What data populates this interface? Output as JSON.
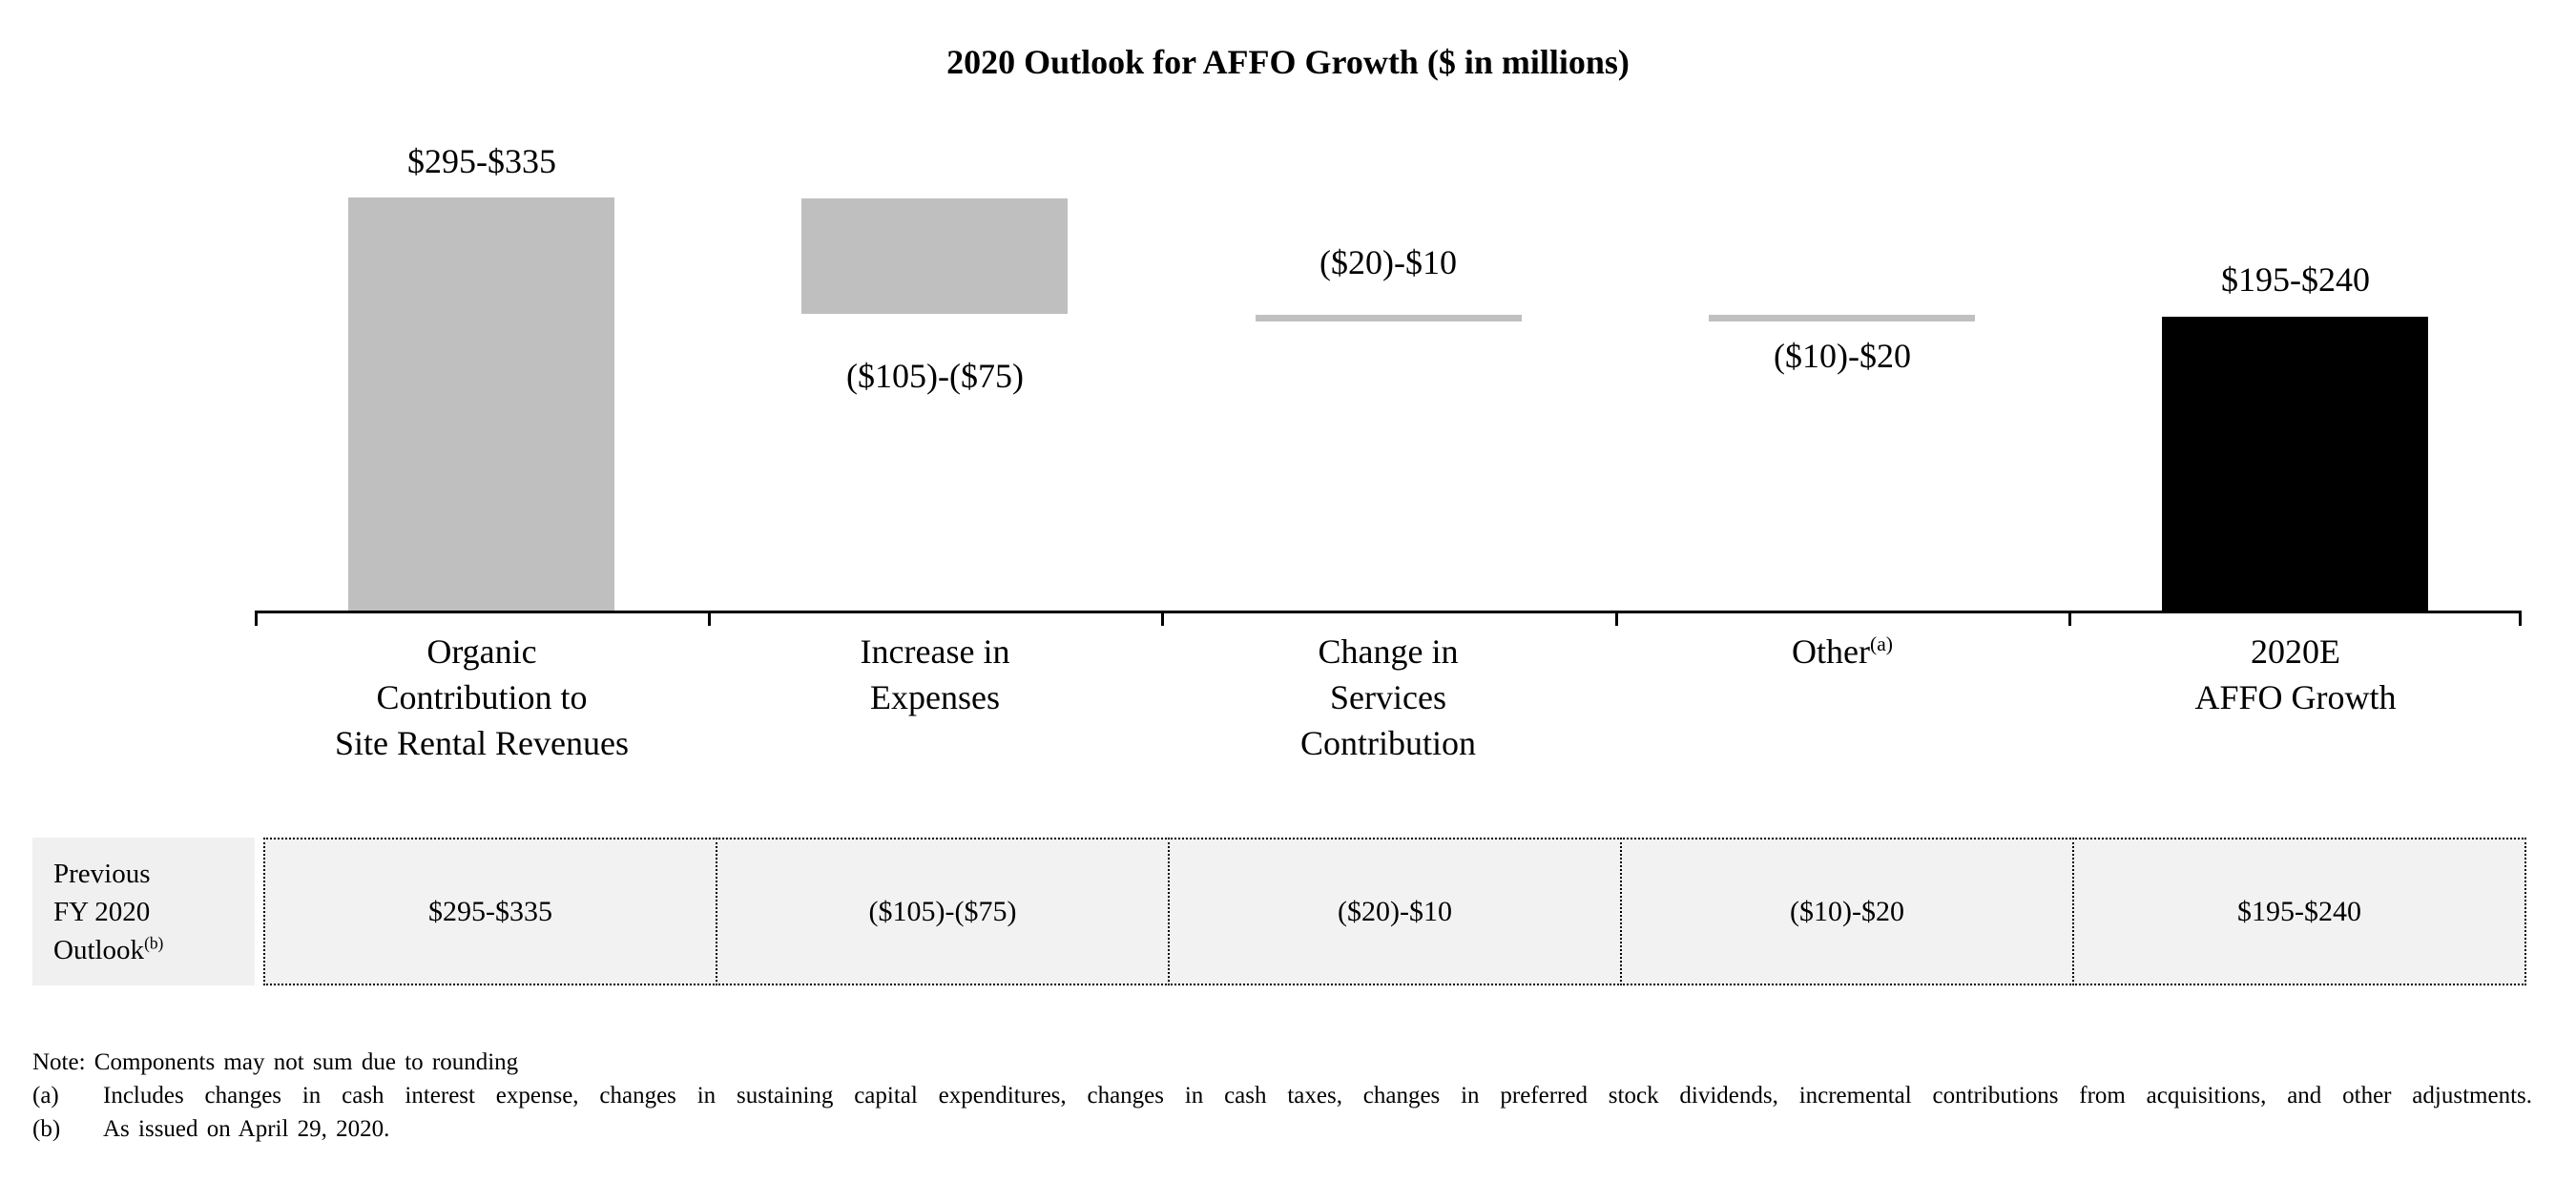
{
  "title": "2020 Outlook for AFFO Growth ($ in millions)",
  "chart_data": {
    "type": "waterfall",
    "title": "2020 Outlook for AFFO Growth ($ in millions)",
    "units": "$ in millions",
    "axis_range": [
      0,
      350
    ],
    "grid": false,
    "legend": false,
    "bars": [
      {
        "category": "Organic\nContribution to\nSite Rental Revenues",
        "value_label": "$295-$335",
        "low": 295,
        "high": 335,
        "bar_color": "#bfbfbf",
        "value_label_position": "above"
      },
      {
        "category": "Increase in\nExpenses",
        "value_label": "($105)-($75)",
        "low": -105,
        "high": -75,
        "bar_color": "#bfbfbf",
        "value_label_position": "below"
      },
      {
        "category": "Change in\nServices\nContribution",
        "value_label": "($20)-$10",
        "low": -20,
        "high": 10,
        "bar_color": "#c0c0c0",
        "value_label_position": "above"
      },
      {
        "category": "Other",
        "category_sup": "(a)",
        "value_label": "($10)-$20",
        "low": -10,
        "high": 20,
        "bar_color": "#c0c0c0",
        "value_label_position": "below"
      },
      {
        "category": "2020E\nAFFO Growth",
        "value_label": "$195-$240",
        "low": 195,
        "high": 240,
        "bar_color": "#000000",
        "value_label_position": "above"
      }
    ]
  },
  "table": {
    "row_header": {
      "lines": "Previous\nFY 2020\nOutlook",
      "sup": "(b)"
    },
    "values": [
      "$295-$335",
      "($105)-($75)",
      "($20)-$10",
      "($10)-$20",
      "$195-$240"
    ]
  },
  "notes": {
    "rounding": "Note: Components may not sum due to rounding",
    "a_label": "(a)",
    "a_text": "Includes changes in cash interest expense, changes in sustaining capital expenditures, changes in cash taxes, changes in preferred stock dividends, incremental contributions from acquisitions, and other adjustments.",
    "b_label": "(b)",
    "b_text": "As issued on April 29, 2020."
  },
  "colors": {
    "bar_gray": "#bfbfbf",
    "bar_black": "#000000",
    "cell_fill": "#f2f2f2",
    "row_header_fill": "#f0f0f0",
    "axis": "#000000"
  }
}
